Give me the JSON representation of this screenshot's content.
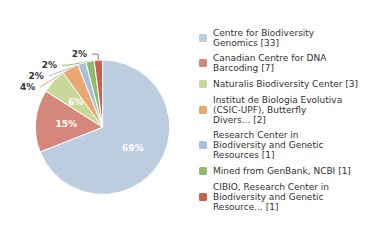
{
  "chart_data": {
    "type": "pie",
    "categories": [
      "Centre for Biodiversity\nGenomics [33]",
      "Canadian Centre for DNA\nBarcoding [7]",
      "Naturalis Biodiversity Center [3]",
      "Institut de Biologia Evolutiva\n(CSIC-UPF), Butterfly\nDivers... [2]",
      "Research Center in\nBiodiversity and Genetic\nResources [1]",
      "Mined from GenBank, NCBI [1]",
      "CIBIO, Research Center in\nBiodiversity and Genetic\nResource... [1]"
    ],
    "values": [
      69,
      15,
      6,
      4,
      2,
      2,
      2
    ],
    "value_labels": [
      "69%",
      "15%",
      "6%",
      "4%",
      "2%",
      "2%",
      "2%"
    ],
    "colors": [
      "#bccde0",
      "#d4877a",
      "#c8d898",
      "#e8a870",
      "#a8c0d8",
      "#8fbc6f",
      "#c96050"
    ],
    "legend": "right",
    "data_labels": true
  }
}
